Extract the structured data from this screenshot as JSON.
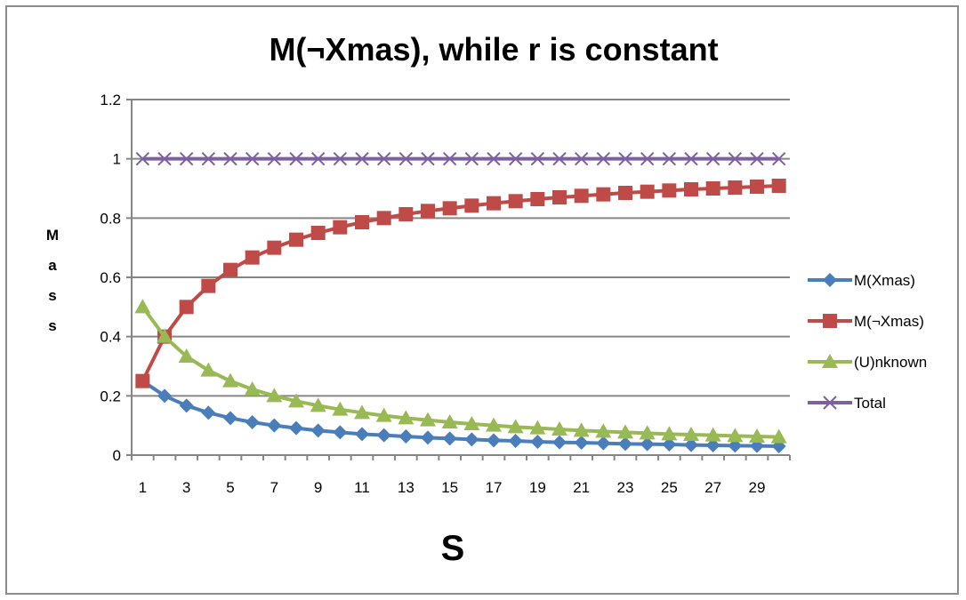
{
  "chart_data": {
    "type": "line",
    "title": "M(¬Xmas), while r is constant",
    "xlabel": "S",
    "ylabel": "Mass",
    "x": [
      1,
      2,
      3,
      4,
      5,
      6,
      7,
      8,
      9,
      10,
      11,
      12,
      13,
      14,
      15,
      16,
      17,
      18,
      19,
      20,
      21,
      22,
      23,
      24,
      25,
      26,
      27,
      28,
      29,
      30
    ],
    "x_tick_labels": [
      "1",
      "3",
      "5",
      "7",
      "9",
      "11",
      "13",
      "15",
      "17",
      "19",
      "21",
      "23",
      "25",
      "27",
      "29"
    ],
    "ylim": [
      0,
      1.2
    ],
    "y_ticks": [
      0,
      0.2,
      0.4,
      0.6,
      0.8,
      1,
      1.2
    ],
    "y_tick_labels": [
      "0",
      "0.2",
      "0.4",
      "0.6",
      "0.8",
      "1",
      "1.2"
    ],
    "grid": true,
    "legend_position": "right",
    "series": [
      {
        "name": "M(Xmas)",
        "color": "#4a7ebb",
        "marker": "diamond",
        "values": [
          0.25,
          0.2,
          0.167,
          0.143,
          0.125,
          0.111,
          0.1,
          0.091,
          0.083,
          0.077,
          0.071,
          0.067,
          0.063,
          0.059,
          0.056,
          0.053,
          0.05,
          0.048,
          0.045,
          0.043,
          0.042,
          0.04,
          0.038,
          0.037,
          0.036,
          0.034,
          0.033,
          0.032,
          0.031,
          0.03
        ]
      },
      {
        "name": "M(¬Xmas)",
        "color": "#be4b48",
        "marker": "square",
        "values": [
          0.25,
          0.4,
          0.5,
          0.571,
          0.625,
          0.667,
          0.7,
          0.727,
          0.75,
          0.769,
          0.786,
          0.8,
          0.813,
          0.824,
          0.833,
          0.842,
          0.85,
          0.857,
          0.864,
          0.87,
          0.875,
          0.88,
          0.885,
          0.889,
          0.893,
          0.897,
          0.9,
          0.903,
          0.906,
          0.909
        ]
      },
      {
        "name": "(U)nknown",
        "color": "#98b954",
        "marker": "triangle",
        "values": [
          0.5,
          0.4,
          0.333,
          0.286,
          0.25,
          0.222,
          0.2,
          0.182,
          0.167,
          0.154,
          0.143,
          0.133,
          0.125,
          0.118,
          0.111,
          0.105,
          0.1,
          0.095,
          0.091,
          0.087,
          0.083,
          0.08,
          0.077,
          0.074,
          0.071,
          0.069,
          0.067,
          0.065,
          0.063,
          0.061
        ]
      },
      {
        "name": "Total",
        "color": "#7d60a0",
        "marker": "x",
        "values": [
          1,
          1,
          1,
          1,
          1,
          1,
          1,
          1,
          1,
          1,
          1,
          1,
          1,
          1,
          1,
          1,
          1,
          1,
          1,
          1,
          1,
          1,
          1,
          1,
          1,
          1,
          1,
          1,
          1,
          1
        ]
      }
    ]
  }
}
